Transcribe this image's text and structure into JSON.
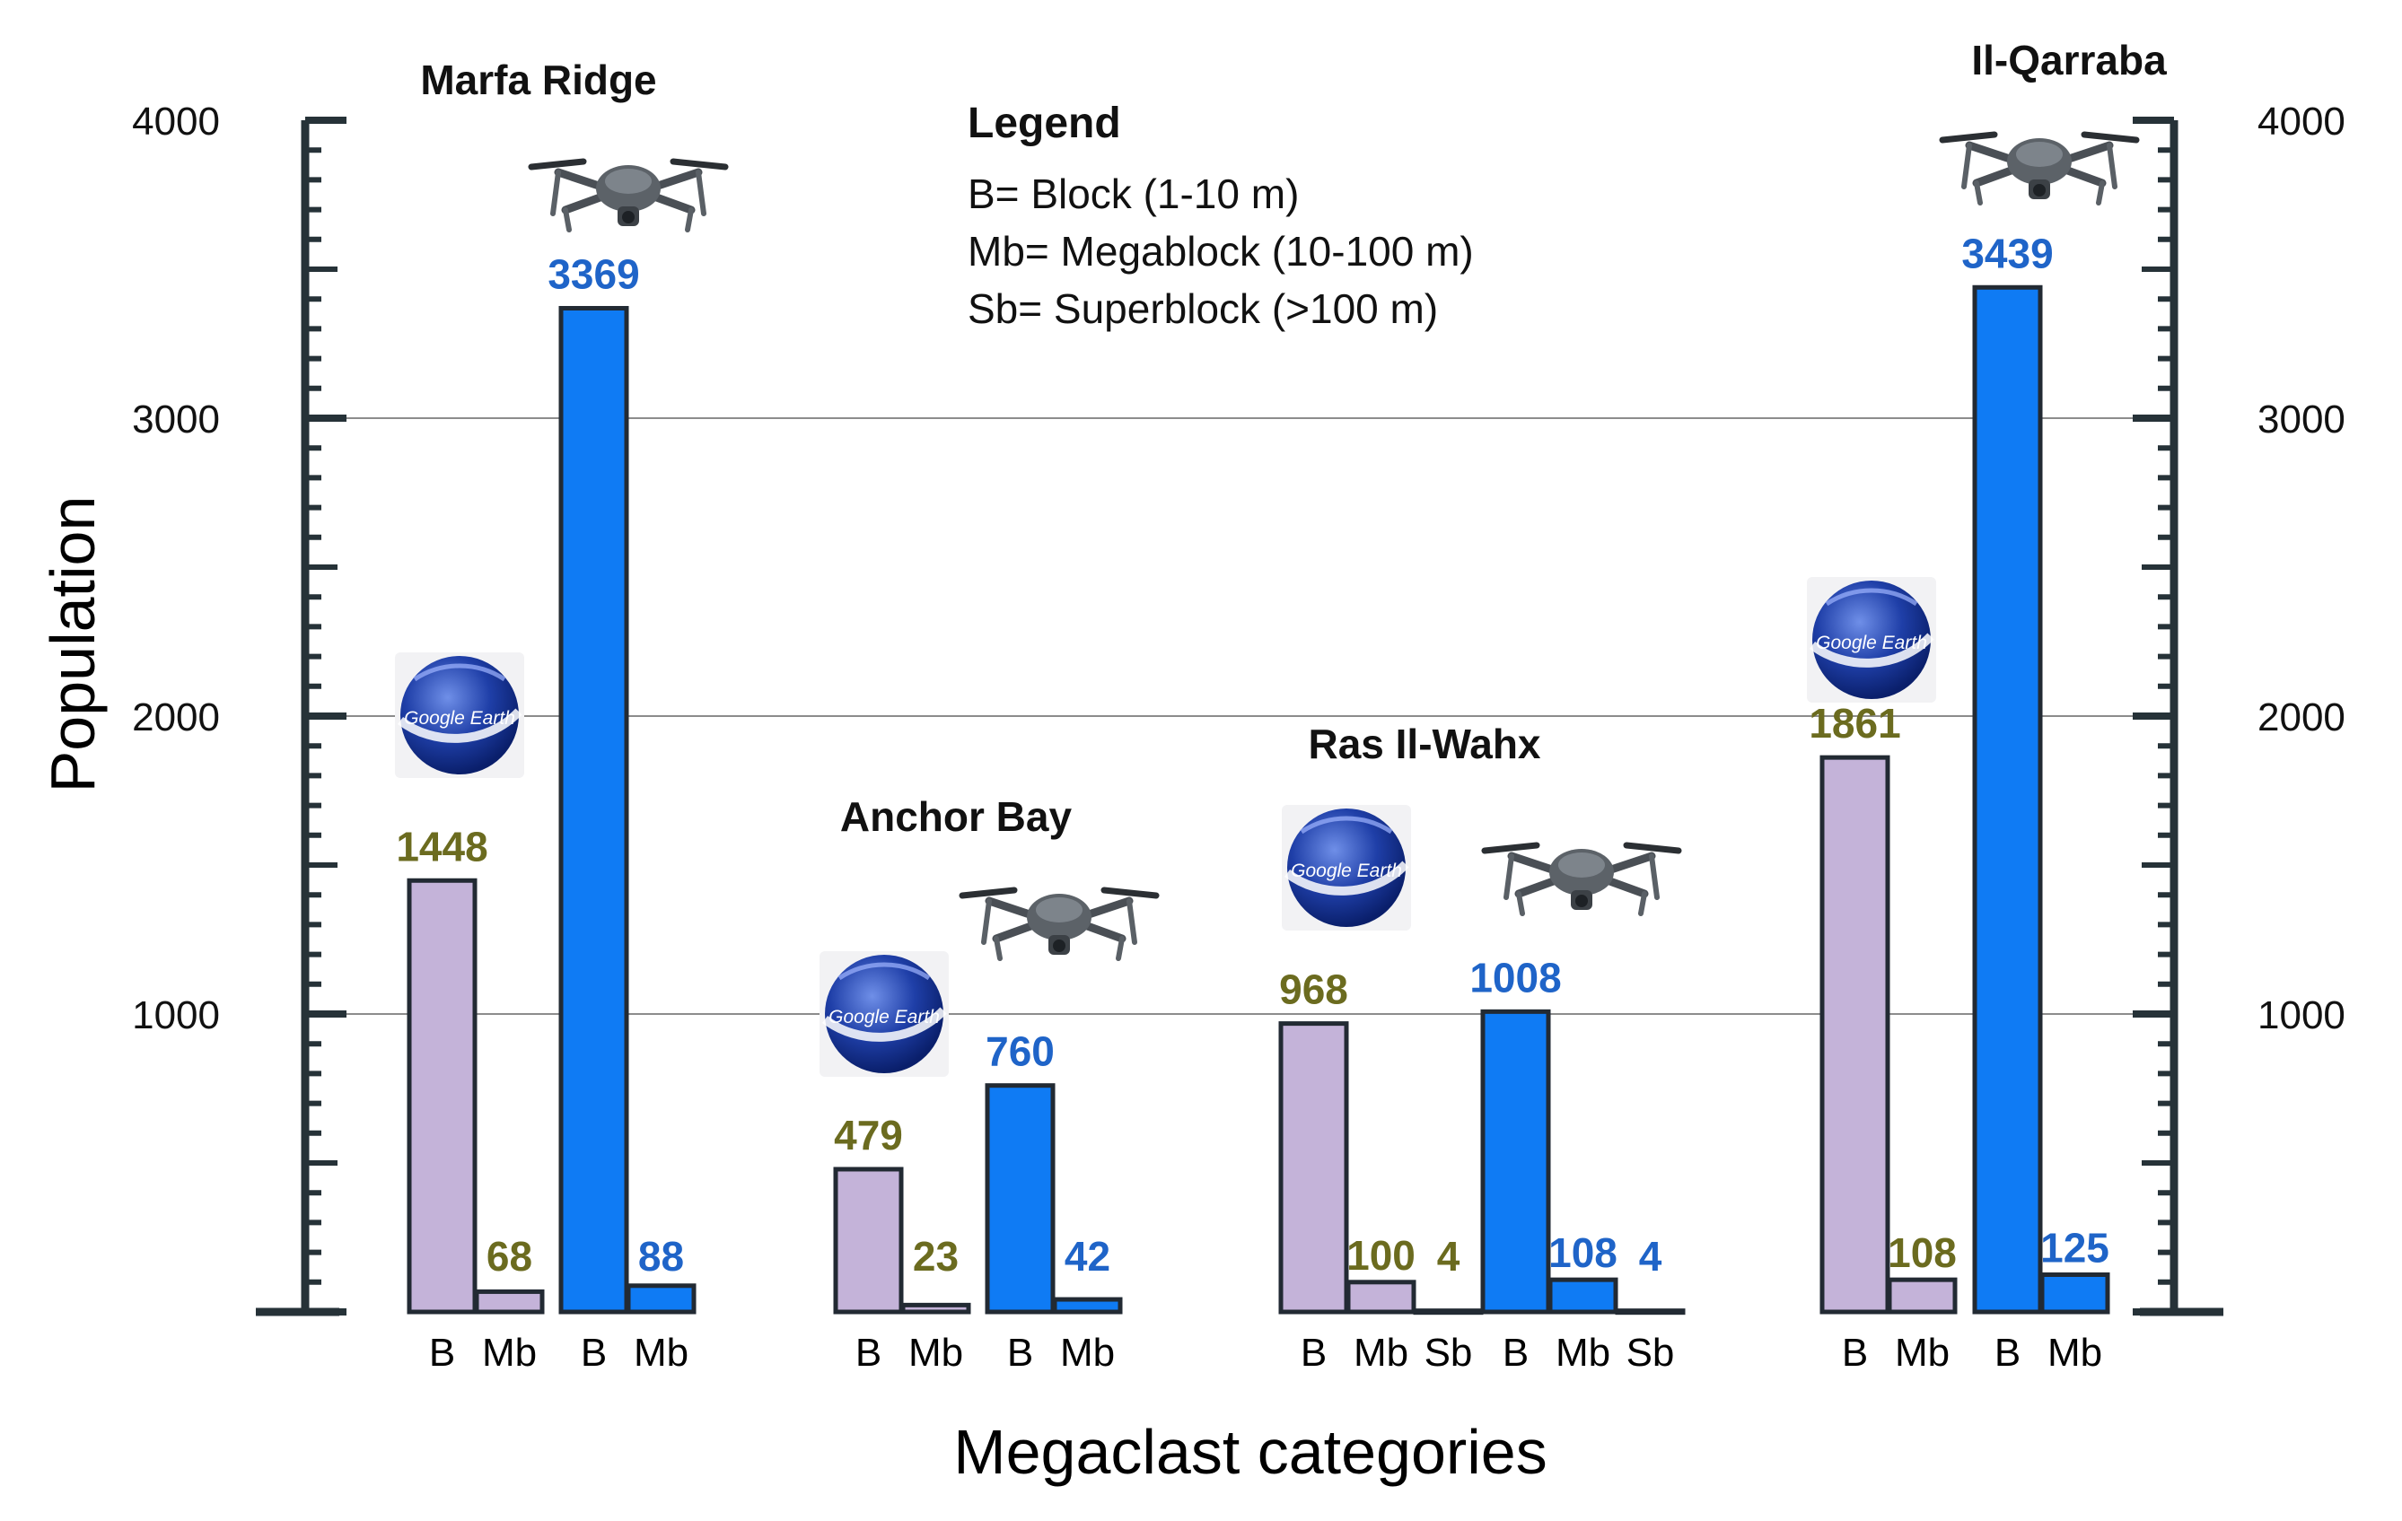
{
  "chart_data": {
    "type": "bar",
    "ylabel": "Population",
    "xlabel": "Megaclast categories",
    "ylim": [
      0,
      4000
    ],
    "yticks": [
      1000,
      2000,
      3000,
      4000
    ],
    "ytick_labels": [
      "1000",
      "2000",
      "3000",
      "4000"
    ],
    "grid": true,
    "legend": {
      "title": "Legend",
      "entries": [
        "B= Block (1-10 m)",
        "Mb= Megablock (10-100 m)",
        "Sb= Superblock (>100 m)"
      ]
    },
    "sites": [
      {
        "name": "Marfa Ridge",
        "groups": [
          {
            "source": "Google Earth",
            "categories": [
              "B",
              "Mb"
            ],
            "values": [
              1448,
              68
            ]
          },
          {
            "source": "Drone",
            "categories": [
              "B",
              "Mb"
            ],
            "values": [
              3369,
              88
            ]
          }
        ]
      },
      {
        "name": "Anchor Bay",
        "groups": [
          {
            "source": "Google Earth",
            "categories": [
              "B",
              "Mb"
            ],
            "values": [
              479,
              23
            ]
          },
          {
            "source": "Drone",
            "categories": [
              "B",
              "Mb"
            ],
            "values": [
              760,
              42
            ]
          }
        ]
      },
      {
        "name": "Ras Il-Wahx",
        "groups": [
          {
            "source": "Google Earth",
            "categories": [
              "B",
              "Mb",
              "Sb"
            ],
            "values": [
              968,
              100,
              4
            ]
          },
          {
            "source": "Drone",
            "categories": [
              "B",
              "Mb",
              "Sb"
            ],
            "values": [
              1008,
              108,
              4
            ]
          }
        ]
      },
      {
        "name": "Il-Qarraba",
        "groups": [
          {
            "source": "Google Earth",
            "categories": [
              "B",
              "Mb"
            ],
            "values": [
              1861,
              108
            ]
          },
          {
            "source": "Drone",
            "categories": [
              "B",
              "Mb"
            ],
            "values": [
              3439,
              125
            ]
          }
        ]
      }
    ],
    "colors": {
      "google_earth_fill": "#c4b3d9",
      "drone_fill": "#0f7bf4",
      "google_earth_label": "#6b6b1f",
      "drone_label": "#1f64c8",
      "bar_outline": "#222a33",
      "axis": "#263238"
    },
    "icons": {
      "google_earth": "globe-icon",
      "drone": "drone-icon",
      "google_earth_text": "Google Earth"
    }
  }
}
